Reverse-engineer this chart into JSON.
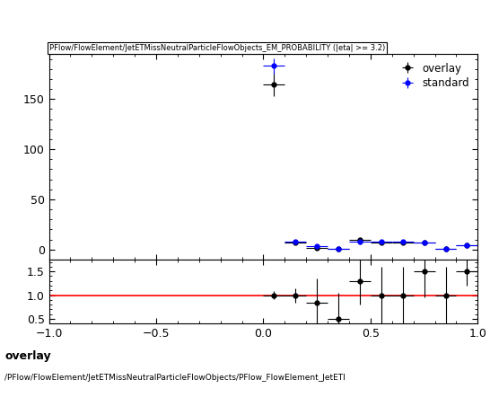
{
  "title": "PFlow/FlowElement/JetETMissNeutralParticleFlowObjects_EM_PROBABILITY (|eta| >= 3.2)",
  "main_ylim": [
    -10,
    195
  ],
  "ratio_ylim": [
    0.4,
    1.75
  ],
  "ratio_yticks": [
    0.5,
    1.0,
    1.5
  ],
  "xlim": [
    -1.0,
    1.0
  ],
  "xticks": [
    -1.0,
    -0.5,
    0.0,
    0.5,
    1.0
  ],
  "overlay_color": "#000000",
  "standard_color": "#0000ff",
  "ratio_line_color": "#ff0000",
  "main_yticks": [
    0,
    50,
    100,
    150
  ],
  "overlay_x": [
    0.05,
    0.15,
    0.25,
    0.35,
    0.45,
    0.55,
    0.65,
    0.75,
    0.85,
    0.95
  ],
  "overlay_y": [
    165.0,
    7.0,
    1.5,
    0.5,
    9.5,
    7.0,
    7.0,
    7.0,
    0.5,
    4.5
  ],
  "overlay_xerr": [
    0.05,
    0.05,
    0.05,
    0.05,
    0.05,
    0.05,
    0.05,
    0.05,
    0.05,
    0.05
  ],
  "overlay_yerr": [
    12.0,
    2.0,
    1.5,
    1.0,
    2.5,
    2.0,
    2.0,
    2.0,
    1.0,
    1.5
  ],
  "standard_x": [
    0.05,
    0.15,
    0.25,
    0.35,
    0.45,
    0.55,
    0.65,
    0.75,
    0.85,
    0.95
  ],
  "standard_y": [
    183.0,
    7.5,
    3.0,
    0.2,
    7.5,
    7.5,
    7.5,
    6.5,
    0.5,
    4.0
  ],
  "standard_xerr": [
    0.05,
    0.05,
    0.05,
    0.05,
    0.05,
    0.05,
    0.05,
    0.05,
    0.05,
    0.05
  ],
  "standard_yerr": [
    8.0,
    1.5,
    1.0,
    0.5,
    2.0,
    1.5,
    1.5,
    1.5,
    0.5,
    1.0
  ],
  "ratio_x": [
    0.05,
    0.15,
    0.25,
    0.35,
    0.45,
    0.55,
    0.65,
    0.75,
    0.85,
    0.95
  ],
  "ratio_y": [
    1.0,
    1.0,
    0.85,
    0.5,
    1.3,
    1.0,
    1.0,
    1.5,
    1.0,
    1.5
  ],
  "ratio_xerr": [
    0.05,
    0.05,
    0.05,
    0.05,
    0.05,
    0.05,
    0.05,
    0.05,
    0.05,
    0.05
  ],
  "ratio_yerr": [
    0.08,
    0.15,
    0.5,
    0.55,
    0.5,
    0.6,
    0.6,
    0.55,
    0.6,
    0.3
  ],
  "legend_entries": [
    "overlay",
    "standard"
  ],
  "bottom_label_line1": "overlay",
  "bottom_label_line2": "/PFlow/FlowElement/JetETMissNeutralParticleFlowObjects/PFlow_FlowElement_JetETI",
  "background_color": "#ffffff"
}
